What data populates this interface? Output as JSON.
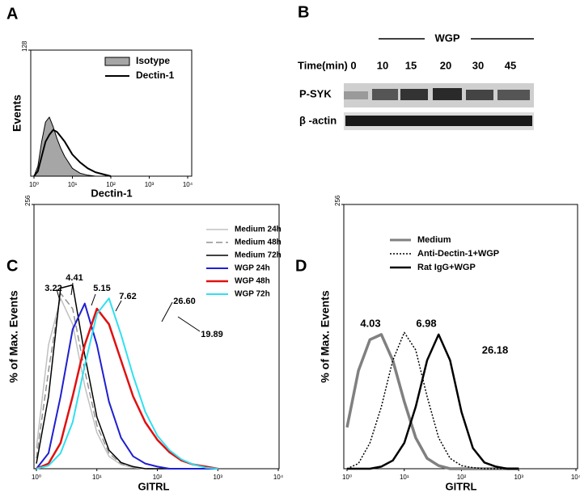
{
  "chart_data": [
    {
      "type": "line",
      "panel_label": "A",
      "y_label": "Events",
      "x_label": "Dectin-1",
      "x": [
        0,
        0.1,
        0.2,
        0.3,
        0.4,
        0.5,
        0.6,
        0.7,
        0.8,
        1.0,
        1.2,
        1.4,
        1.6,
        1.8,
        2.0
      ],
      "series": [
        {
          "name": "Isotype",
          "color": "#000000",
          "fill": "#a6a6a6",
          "values": [
            0,
            10,
            35,
            55,
            60,
            50,
            38,
            28,
            20,
            8,
            3,
            1,
            0,
            0,
            0
          ]
        },
        {
          "name": "Dectin-1",
          "color": "#000000",
          "values": [
            0,
            5,
            20,
            35,
            42,
            47,
            45,
            40,
            35,
            22,
            14,
            8,
            4,
            2,
            0
          ]
        }
      ],
      "xlim": [
        0,
        4
      ],
      "ylim": [
        0,
        128
      ],
      "xticks": [
        {
          "value": 0,
          "label": "10⁰"
        },
        {
          "value": 1,
          "label": "10¹"
        },
        {
          "value": 2,
          "label": "10²"
        },
        {
          "value": 3,
          "label": "10³"
        },
        {
          "value": 4,
          "label": "10⁴"
        }
      ],
      "yticks": [
        128
      ]
    },
    {
      "type": "line",
      "panel_label": "C",
      "y_label": "% of Max. Events",
      "x_label": "GITRL",
      "x": [
        0,
        0.2,
        0.4,
        0.6,
        0.8,
        1.0,
        1.2,
        1.4,
        1.6,
        1.8,
        2.0,
        2.2,
        2.4,
        2.6,
        2.8,
        3.0
      ],
      "series": [
        {
          "name": "Medium 24h",
          "color": "#c0c0c0",
          "values": [
            20,
            120,
            165,
            140,
            80,
            35,
            12,
            4,
            1,
            0,
            0,
            0,
            0,
            0,
            0,
            0
          ]
        },
        {
          "name": "Medium 48h",
          "color": "#909090",
          "dash": "dashed",
          "values": [
            10,
            95,
            170,
            155,
            95,
            42,
            15,
            5,
            2,
            0,
            0,
            0,
            0,
            0,
            0,
            0
          ]
        },
        {
          "name": "Medium 72h",
          "color": "#000000",
          "values": [
            5,
            70,
            175,
            178,
            110,
            50,
            18,
            6,
            2,
            0,
            0,
            0,
            0,
            0,
            0,
            0
          ]
        },
        {
          "name": "WGP 24h",
          "color": "#1f1fd0",
          "values": [
            0,
            15,
            70,
            135,
            160,
            120,
            65,
            30,
            12,
            5,
            2,
            0,
            0,
            0,
            0,
            0
          ]
        },
        {
          "name": "WGP 48h",
          "color": "#e01010",
          "values": [
            0,
            5,
            25,
            70,
            120,
            155,
            140,
            105,
            70,
            45,
            28,
            16,
            8,
            4,
            2,
            0
          ]
        },
        {
          "name": "WGP 72h",
          "color": "#30e0f0",
          "values": [
            0,
            3,
            15,
            45,
            100,
            150,
            165,
            130,
            90,
            55,
            32,
            18,
            9,
            4,
            1,
            0
          ]
        }
      ],
      "annotations": [
        "3.22",
        "4.41",
        "5.15",
        "7.62",
        "26.60",
        "19.89"
      ],
      "xlim": [
        0,
        4
      ],
      "ylim": [
        0,
        256
      ],
      "xticks": [
        {
          "value": 0,
          "label": "10⁰"
        },
        {
          "value": 1,
          "label": "10¹"
        },
        {
          "value": 2,
          "label": "10²"
        },
        {
          "value": 3,
          "label": "10³"
        },
        {
          "value": 4,
          "label": "10⁴"
        }
      ],
      "yticks": [
        256
      ]
    },
    {
      "type": "line",
      "panel_label": "D",
      "y_label": "% of Max. Events",
      "x_label": "GITRL",
      "x": [
        0,
        0.2,
        0.4,
        0.6,
        0.8,
        1.0,
        1.2,
        1.4,
        1.6,
        1.8,
        2.0,
        2.2,
        2.4,
        2.6,
        2.8,
        3.0
      ],
      "series": [
        {
          "name": "Medium",
          "color": "#808080",
          "values": [
            40,
            95,
            125,
            130,
            105,
            65,
            30,
            10,
            3,
            0,
            0,
            0,
            0,
            0,
            0,
            0
          ]
        },
        {
          "name": "Anti-Dectin-1+WGP",
          "color": "#000000",
          "dash": "dotted",
          "values": [
            0,
            5,
            25,
            60,
            105,
            132,
            115,
            70,
            30,
            10,
            3,
            1,
            0,
            0,
            0,
            0
          ]
        },
        {
          "name": "Rat IgG+WGP",
          "color": "#000000",
          "values": [
            0,
            0,
            0,
            2,
            8,
            25,
            60,
            105,
            130,
            105,
            55,
            20,
            6,
            2,
            0,
            0
          ]
        }
      ],
      "annotations": [
        "4.03",
        "6.98",
        "26.18"
      ],
      "xlim": [
        0,
        4
      ],
      "ylim": [
        0,
        256
      ],
      "xticks": [
        {
          "value": 0,
          "label": "10⁰"
        },
        {
          "value": 1,
          "label": "10¹"
        },
        {
          "value": 2,
          "label": "10²"
        },
        {
          "value": 3,
          "label": "10³"
        },
        {
          "value": 4,
          "label": "10⁴"
        }
      ],
      "yticks": [
        256
      ]
    }
  ],
  "blot": {
    "panel_label": "B",
    "treatment": "WGP",
    "time_label": "Time(min)",
    "times": [
      "0",
      "10",
      "15",
      "20",
      "30",
      "45"
    ],
    "rows": [
      "P-SYK",
      "β -actin"
    ]
  }
}
